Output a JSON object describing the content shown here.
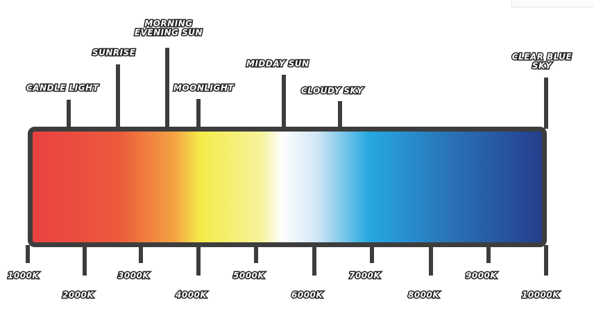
{
  "colors": {
    "frame": "#3d3d3d",
    "gradient": [
      "#e94242",
      "#ec5a3c",
      "#f3a543",
      "#f5ec4a",
      "#f6f39d",
      "#ffffff",
      "#cfe6f5",
      "#26a8df",
      "#2a72b7",
      "#243f8c"
    ]
  },
  "sources": [
    {
      "label": "CANDLE LIGHT"
    },
    {
      "label": "SUNRISE"
    },
    {
      "label": "MORNING\nEVENING SUN"
    },
    {
      "label": "MOONLIGHT"
    },
    {
      "label": "MIDDAY SUN"
    },
    {
      "label": "CLOUDY SKY"
    },
    {
      "label": "CLEAR BLUE\nSKY"
    }
  ],
  "scale": [
    {
      "label": "1000K"
    },
    {
      "label": "2000K"
    },
    {
      "label": "3000K"
    },
    {
      "label": "4000K"
    },
    {
      "label": "5000K"
    },
    {
      "label": "6000K"
    },
    {
      "label": "7000K"
    },
    {
      "label": "8000K"
    },
    {
      "label": "9000K"
    },
    {
      "label": "10000K"
    }
  ]
}
